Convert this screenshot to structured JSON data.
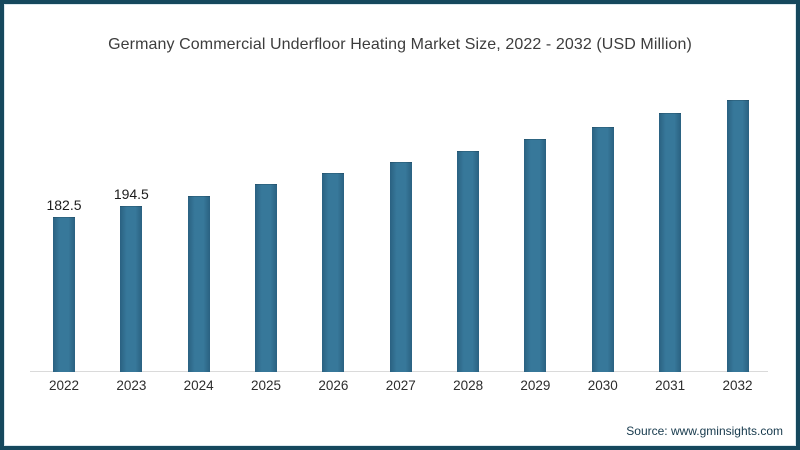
{
  "title": "Germany Commercial Underfloor Heating Market Size, 2022 - 2032 (USD Million)",
  "source_text": "Source: www.gminsights.com",
  "colors": {
    "bar_fill": "#31708f",
    "bar_fill_light": "#37789a",
    "bar_fill_dark": "#2a6181",
    "frame_border": "#16485d",
    "frame_inner_line": "#dbe8ee",
    "axis_line": "#dadada",
    "title_text": "#3d3d3d",
    "label_text": "#1c1c1c",
    "year_text": "#2d2d2d",
    "source_text": "#16394c"
  },
  "chart_data": {
    "type": "bar",
    "title": "Germany Commercial Underfloor Heating Market Size, 2022 - 2032 (USD Million)",
    "categories": [
      "2022",
      "2023",
      "2024",
      "2025",
      "2026",
      "2027",
      "2028",
      "2029",
      "2030",
      "2031",
      "2032"
    ],
    "values": [
      182.5,
      194.5,
      206.5,
      220.5,
      233.5,
      246.5,
      259.5,
      274,
      287.5,
      304,
      319.5
    ],
    "data_labels": [
      "182.5",
      "194.5",
      "",
      "",
      "",
      "",
      "",
      "",
      "",
      "",
      ""
    ],
    "xlabel": "",
    "ylabel": "",
    "units": "USD Million",
    "ylim": [
      0,
      340
    ],
    "grid": false,
    "legend": false,
    "note": "Only the 2022 and 2023 bars show visible value labels; 2024-2032 values are estimated from bar heights."
  }
}
